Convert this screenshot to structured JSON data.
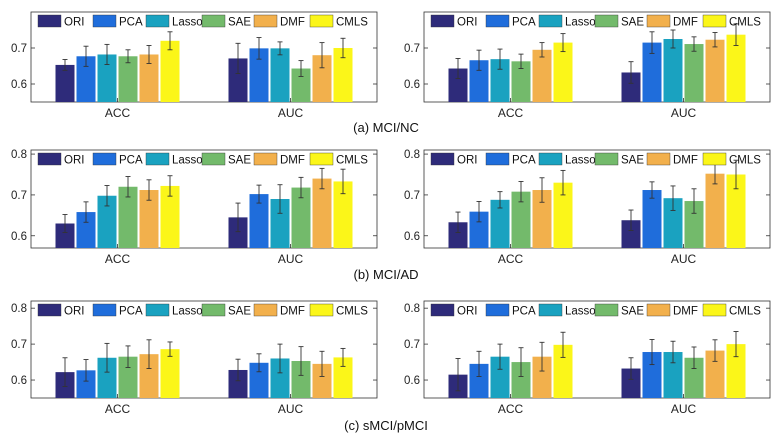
{
  "colors": {
    "ORI": "#2e2b7a",
    "PCA": "#1f6ddb",
    "Lasso": "#1aa2c0",
    "SAE": "#73ba6b",
    "DMF": "#f2b04c",
    "CMLS": "#fbf619"
  },
  "captions": [
    "(a) MCI/NC",
    "(b) MCI/AD",
    "(c) sMCI/pMCI"
  ],
  "chart_data": [
    {
      "type": "bar",
      "panel": "(a) MCI/NC left",
      "categories": [
        "ACC",
        "AUC"
      ],
      "yticks": [
        "0.6",
        "0.7"
      ],
      "ylim": [
        0.55,
        0.8
      ],
      "legend": "top",
      "series": [
        {
          "name": "ORI",
          "values": [
            0.653,
            0.671
          ],
          "errors": [
            0.015,
            0.042
          ]
        },
        {
          "name": "PCA",
          "values": [
            0.677,
            0.699
          ],
          "errors": [
            0.028,
            0.03
          ]
        },
        {
          "name": "Lasso",
          "values": [
            0.682,
            0.699
          ],
          "errors": [
            0.028,
            0.018
          ]
        },
        {
          "name": "SAE",
          "values": [
            0.677,
            0.643
          ],
          "errors": [
            0.018,
            0.022
          ]
        },
        {
          "name": "DMF",
          "values": [
            0.682,
            0.68
          ],
          "errors": [
            0.025,
            0.035
          ]
        },
        {
          "name": "CMLS",
          "values": [
            0.72,
            0.7
          ],
          "errors": [
            0.025,
            0.027
          ]
        }
      ]
    },
    {
      "type": "bar",
      "panel": "(a) MCI/NC right",
      "categories": [
        "ACC",
        "AUC"
      ],
      "yticks": [
        "0.6",
        "0.7"
      ],
      "ylim": [
        0.55,
        0.8
      ],
      "legend": "top",
      "series": [
        {
          "name": "ORI",
          "values": [
            0.643,
            0.632
          ],
          "errors": [
            0.028,
            0.03
          ]
        },
        {
          "name": "PCA",
          "values": [
            0.666,
            0.715
          ],
          "errors": [
            0.028,
            0.03
          ]
        },
        {
          "name": "Lasso",
          "values": [
            0.669,
            0.725
          ],
          "errors": [
            0.028,
            0.025
          ]
        },
        {
          "name": "SAE",
          "values": [
            0.663,
            0.711
          ],
          "errors": [
            0.02,
            0.02
          ]
        },
        {
          "name": "DMF",
          "values": [
            0.695,
            0.723
          ],
          "errors": [
            0.02,
            0.02
          ]
        },
        {
          "name": "CMLS",
          "values": [
            0.715,
            0.737
          ],
          "errors": [
            0.025,
            0.03
          ]
        }
      ]
    },
    {
      "type": "bar",
      "panel": "(b) MCI/AD left",
      "categories": [
        "ACC",
        "AUC"
      ],
      "yticks": [
        "0.6",
        "0.7",
        "0.8"
      ],
      "ylim": [
        0.57,
        0.81
      ],
      "legend": "top",
      "series": [
        {
          "name": "ORI",
          "values": [
            0.63,
            0.645
          ],
          "errors": [
            0.022,
            0.035
          ]
        },
        {
          "name": "PCA",
          "values": [
            0.658,
            0.702
          ],
          "errors": [
            0.025,
            0.022
          ]
        },
        {
          "name": "Lasso",
          "values": [
            0.698,
            0.69
          ],
          "errors": [
            0.025,
            0.035
          ]
        },
        {
          "name": "SAE",
          "values": [
            0.72,
            0.718
          ],
          "errors": [
            0.025,
            0.025
          ]
        },
        {
          "name": "DMF",
          "values": [
            0.712,
            0.74
          ],
          "errors": [
            0.025,
            0.025
          ]
        },
        {
          "name": "CMLS",
          "values": [
            0.722,
            0.733
          ],
          "errors": [
            0.025,
            0.03
          ]
        }
      ]
    },
    {
      "type": "bar",
      "panel": "(b) MCI/AD right",
      "categories": [
        "ACC",
        "AUC"
      ],
      "yticks": [
        "0.6",
        "0.7",
        "0.8"
      ],
      "ylim": [
        0.57,
        0.81
      ],
      "legend": "top",
      "series": [
        {
          "name": "ORI",
          "values": [
            0.633,
            0.638
          ],
          "errors": [
            0.025,
            0.025
          ]
        },
        {
          "name": "PCA",
          "values": [
            0.659,
            0.712
          ],
          "errors": [
            0.025,
            0.02
          ]
        },
        {
          "name": "Lasso",
          "values": [
            0.688,
            0.692
          ],
          "errors": [
            0.02,
            0.03
          ]
        },
        {
          "name": "SAE",
          "values": [
            0.708,
            0.685
          ],
          "errors": [
            0.025,
            0.03
          ]
        },
        {
          "name": "DMF",
          "values": [
            0.712,
            0.752
          ],
          "errors": [
            0.03,
            0.025
          ]
        },
        {
          "name": "CMLS",
          "values": [
            0.73,
            0.75
          ],
          "errors": [
            0.03,
            0.035
          ]
        }
      ]
    },
    {
      "type": "bar",
      "panel": "(c) sMCI/pMCI left",
      "categories": [
        "ACC",
        "AUC"
      ],
      "yticks": [
        "0.6",
        "0.7",
        "0.8"
      ],
      "ylim": [
        0.55,
        0.82
      ],
      "legend": "top",
      "series": [
        {
          "name": "ORI",
          "values": [
            0.622,
            0.628
          ],
          "errors": [
            0.04,
            0.03
          ]
        },
        {
          "name": "PCA",
          "values": [
            0.627,
            0.648
          ],
          "errors": [
            0.03,
            0.025
          ]
        },
        {
          "name": "Lasso",
          "values": [
            0.662,
            0.66
          ],
          "errors": [
            0.04,
            0.04
          ]
        },
        {
          "name": "SAE",
          "values": [
            0.665,
            0.653
          ],
          "errors": [
            0.03,
            0.04
          ]
        },
        {
          "name": "DMF",
          "values": [
            0.672,
            0.645
          ],
          "errors": [
            0.04,
            0.035
          ]
        },
        {
          "name": "CMLS",
          "values": [
            0.686,
            0.663
          ],
          "errors": [
            0.02,
            0.025
          ]
        }
      ]
    },
    {
      "type": "bar",
      "panel": "(c) sMCI/pMCI right",
      "categories": [
        "ACC",
        "AUC"
      ],
      "yticks": [
        "0.6",
        "0.7",
        "0.8"
      ],
      "ylim": [
        0.55,
        0.82
      ],
      "legend": "top",
      "series": [
        {
          "name": "ORI",
          "values": [
            0.615,
            0.632
          ],
          "errors": [
            0.045,
            0.03
          ]
        },
        {
          "name": "PCA",
          "values": [
            0.645,
            0.678
          ],
          "errors": [
            0.035,
            0.035
          ]
        },
        {
          "name": "Lasso",
          "values": [
            0.665,
            0.678
          ],
          "errors": [
            0.035,
            0.03
          ]
        },
        {
          "name": "SAE",
          "values": [
            0.65,
            0.662
          ],
          "errors": [
            0.04,
            0.03
          ]
        },
        {
          "name": "DMF",
          "values": [
            0.665,
            0.682
          ],
          "errors": [
            0.04,
            0.03
          ]
        },
        {
          "name": "CMLS",
          "values": [
            0.698,
            0.7
          ],
          "errors": [
            0.035,
            0.035
          ]
        }
      ]
    }
  ]
}
